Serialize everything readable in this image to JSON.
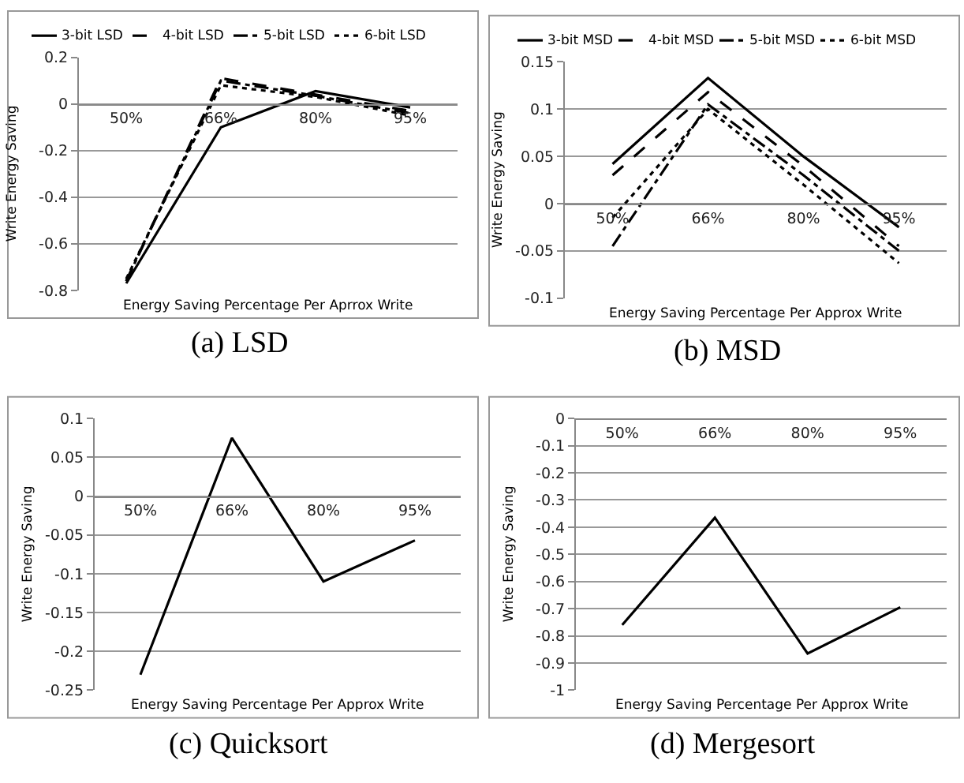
{
  "chart_data": [
    {
      "type": "line",
      "title": "(a) LSD",
      "xlabel": "Energy Saving Percentage Per Aprrox Write",
      "ylabel": "Write Energy Saving",
      "categories": [
        "50%",
        "66%",
        "80%",
        "95%"
      ],
      "series": [
        {
          "name": "3-bit LSD",
          "color": "#000000",
          "line_style": "solid",
          "values": [
            -0.77,
            -0.1,
            0.055,
            -0.015
          ]
        },
        {
          "name": "4-bit LSD",
          "color": "#000000",
          "line_style": "dashed",
          "values": [
            -0.76,
            0.11,
            0.04,
            -0.03
          ]
        },
        {
          "name": "5-bit LSD",
          "color": "#000000",
          "line_style": "dashdot",
          "values": [
            -0.76,
            0.1,
            0.035,
            -0.04
          ]
        },
        {
          "name": "6-bit LSD",
          "color": "#000000",
          "line_style": "dotted",
          "values": [
            -0.75,
            0.08,
            0.03,
            -0.05
          ]
        }
      ],
      "ylim": [
        -0.8,
        0.2
      ],
      "yticks": [
        {
          "value": -0.8,
          "label": "-0.8"
        },
        {
          "value": -0.6,
          "label": "-0.6"
        },
        {
          "value": -0.4,
          "label": "-0.4"
        },
        {
          "value": -0.2,
          "label": "-0.2"
        },
        0,
        0.2
      ],
      "grid": "y",
      "legend": "top",
      "marker": "none"
    },
    {
      "type": "line",
      "title": "(b) MSD",
      "xlabel": "Energy Saving Percentage Per Approx Write",
      "ylabel": "Write Energy Saving",
      "categories": [
        "50%",
        "66%",
        "80%",
        "95%"
      ],
      "series": [
        {
          "name": "3-bit MSD",
          "color": "#000000",
          "line_style": "solid",
          "values": [
            0.042,
            0.133,
            0.05,
            -0.025
          ]
        },
        {
          "name": "4-bit MSD",
          "color": "#000000",
          "line_style": "dashed",
          "values": [
            0.03,
            0.118,
            0.04,
            -0.045
          ]
        },
        {
          "name": "5-bit MSD",
          "color": "#000000",
          "line_style": "dashdot",
          "values": [
            -0.045,
            0.105,
            0.03,
            -0.05
          ]
        },
        {
          "name": "6-bit MSD",
          "color": "#000000",
          "line_style": "dotted",
          "values": [
            -0.015,
            0.1,
            0.02,
            -0.063
          ]
        }
      ],
      "ylim": [
        -0.1,
        0.15
      ],
      "yticks": [
        {
          "value": -0.1,
          "label": "-0.1"
        },
        {
          "value": -0.05,
          "label": "-0.05"
        },
        0,
        0.05,
        0.1,
        0.15
      ],
      "grid": "y",
      "legend": "top",
      "marker": "none"
    },
    {
      "type": "line",
      "title": "(c) Quicksort",
      "xlabel": "Energy Saving Percentage Per Approx Write",
      "ylabel": "Write Energy Saving",
      "categories": [
        "50%",
        "66%",
        "80%",
        "95%"
      ],
      "series": [
        {
          "color": "#000000",
          "line_style": "solid",
          "values": [
            -0.23,
            0.075,
            -0.11,
            -0.057
          ]
        }
      ],
      "ylim": [
        -0.25,
        0.1
      ],
      "yticks": [
        {
          "value": -0.25,
          "label": "-0.25"
        },
        {
          "value": -0.2,
          "label": "-0.2"
        },
        {
          "value": -0.15,
          "label": "-0.15"
        },
        {
          "value": -0.1,
          "label": "-0.1"
        },
        {
          "value": -0.05,
          "label": "-0.05"
        },
        0,
        0.05,
        0.1
      ],
      "grid": "y",
      "legend": false,
      "marker": "none"
    },
    {
      "type": "line",
      "title": "(d) Mergesort",
      "xlabel": "Energy Saving Percentage Per Approx Write",
      "ylabel": "Write Energy Saving",
      "categories": [
        "50%",
        "66%",
        "80%",
        "95%"
      ],
      "series": [
        {
          "color": "#000000",
          "line_style": "solid",
          "values": [
            -0.76,
            -0.365,
            -0.865,
            -0.695
          ]
        }
      ],
      "ylim": [
        -1,
        0
      ],
      "yticks": [
        {
          "value": -1,
          "label": "-1"
        },
        {
          "value": -0.9,
          "label": "-0.9"
        },
        {
          "value": -0.8,
          "label": "-0.8"
        },
        {
          "value": -0.7,
          "label": "-0.7"
        },
        {
          "value": -0.6,
          "label": "-0.6"
        },
        {
          "value": -0.5,
          "label": "-0.5"
        },
        {
          "value": -0.4,
          "label": "-0.4"
        },
        {
          "value": -0.3,
          "label": "-0.3"
        },
        {
          "value": -0.2,
          "label": "-0.2"
        },
        {
          "value": -0.1,
          "label": "-0.1"
        },
        0
      ],
      "grid": "y",
      "legend": false,
      "marker": "none"
    }
  ]
}
